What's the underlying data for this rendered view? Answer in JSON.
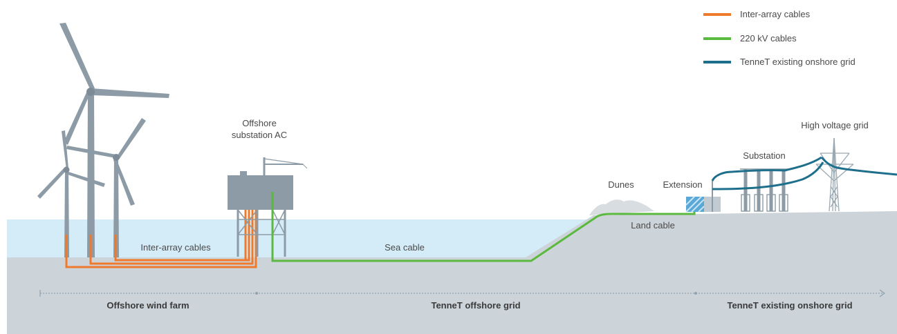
{
  "legend": {
    "items": [
      {
        "label": "Inter-array cables",
        "color": "#f07a2b"
      },
      {
        "label": "220 kV cables",
        "color": "#5cb940"
      },
      {
        "label": "TenneT existing onshore grid",
        "color": "#1e6f8c"
      }
    ]
  },
  "labels": {
    "offshore_substation_line1": "Offshore",
    "offshore_substation_line2": "substation AC",
    "inter_array_cables": "Inter-array cables",
    "sea_cable": "Sea cable",
    "dunes": "Dunes",
    "extension": "Extension",
    "land_cable": "Land cable",
    "substation": "Substation",
    "high_voltage_grid": "High voltage grid"
  },
  "sections": {
    "offshore_wind_farm": "Offshore wind farm",
    "tennet_offshore_grid": "TenneT offshore grid",
    "tennet_existing_onshore_grid": "TenneT existing onshore grid"
  },
  "colors": {
    "sea": "#d4ecf7",
    "ground": "#ccd3d9",
    "turbine": "#8c9ba5",
    "inter_array": "#f07a2b",
    "kv220": "#5cb940",
    "onshore_grid": "#1e6f8c"
  }
}
